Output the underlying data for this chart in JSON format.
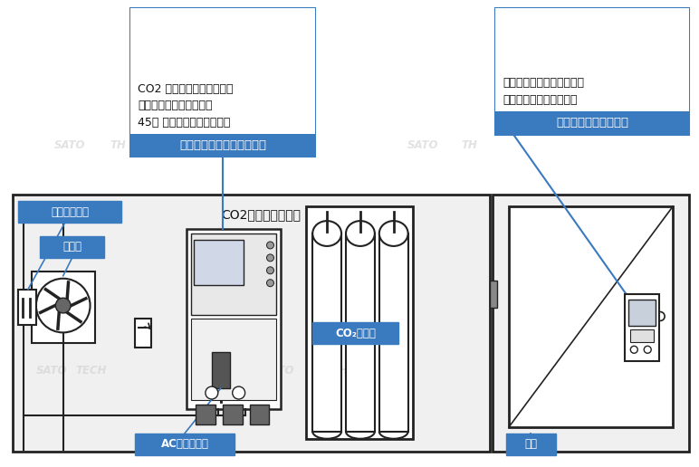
{
  "bg_color": "#ffffff",
  "blue_bg": "#3a7abf",
  "blue_border": "#3a7abf",
  "white": "#ffffff",
  "black": "#111111",
  "light_gray": "#f0f0f0",
  "mid_gray": "#cccccc",
  "dark_gray": "#555555",
  "line_dark": "#222222",
  "wm_color": "#d0d0d0",
  "sensor_unit_label": "センサーユニット（親機）",
  "sensor_unit_desc": "CO2 ボンベの流量弁や多岐\n管などの付近で、床から\n45㎝ 程度の高さに設置する",
  "display_unit_label": "表示ユニット（子機）",
  "display_unit_desc": "部屋の外側、出入口付近の\n見やすい高さに設置する",
  "ventilation_power_label": "換気扇用電源",
  "ventilation_fan_label": "換気扇",
  "co2_cylinder_label": "CO₂ボンベ",
  "ac_adapter_label": "ACアダプター",
  "door_label": "ドア",
  "room_label": "CO2モニタールーム"
}
